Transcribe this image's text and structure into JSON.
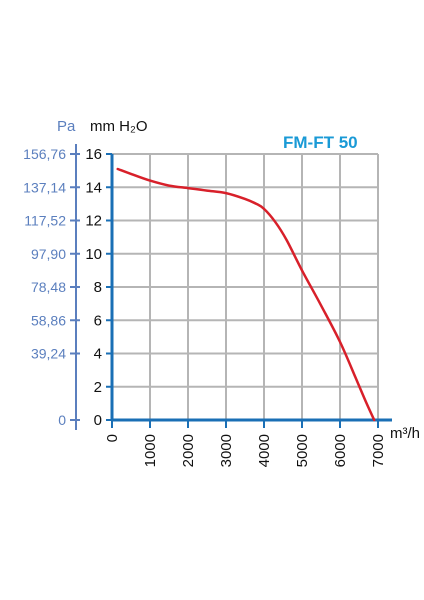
{
  "chart_data": {
    "type": "line",
    "title": "FM-FT 50",
    "ylabel": "mm H₂O",
    "ylabel_secondary": "Pa",
    "xlabel": "m³/h",
    "xlim": [
      0,
      7000
    ],
    "ylim": [
      0,
      16
    ],
    "x_ticks": [
      "0",
      "1000",
      "2000",
      "3000",
      "4000",
      "5000",
      "6000",
      "7000"
    ],
    "y_ticks": [
      "0",
      "2",
      "4",
      "6",
      "8",
      "10",
      "12",
      "14",
      "16"
    ],
    "y_secondary_ticks": [
      "0",
      "39,24",
      "58,86",
      "78,48",
      "97,90",
      "117,52",
      "137,14",
      "156,76"
    ],
    "grid": true,
    "series": [
      {
        "color": "#d8202a",
        "x": [
          150,
          500,
          1000,
          1500,
          2000,
          2500,
          3000,
          3500,
          3800,
          4000,
          4300,
          4600,
          5000,
          5500,
          6000,
          6400,
          6700,
          6900
        ],
        "y": [
          15.1,
          14.8,
          14.4,
          14.1,
          13.95,
          13.8,
          13.65,
          13.3,
          13.0,
          12.7,
          11.9,
          10.8,
          9.0,
          6.9,
          4.7,
          2.6,
          1.0,
          0
        ]
      }
    ],
    "colors": {
      "axis": "#1a6fb5",
      "pa_axis": "#5b7fbe",
      "grid": "#b5b5b5",
      "title": "#1a9ad6",
      "curve": "#d8202a"
    }
  }
}
